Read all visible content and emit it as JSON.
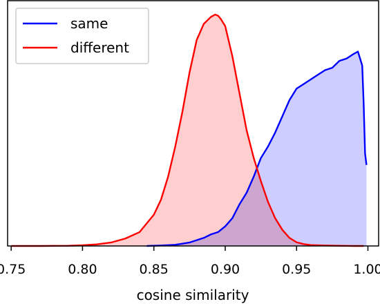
{
  "chart_data": {
    "type": "area",
    "xlabel": "cosine similarity",
    "ylabel": "",
    "title": "",
    "xlim": [
      0.7475,
      1.0075
    ],
    "ylim": [
      0,
      1.06
    ],
    "yticks_visible": false,
    "grid": false,
    "legend": {
      "placement": "upper-left"
    },
    "xticks": [
      {
        "value": 0.75,
        "label": "0.75"
      },
      {
        "value": 0.8,
        "label": "0.80"
      },
      {
        "value": 0.85,
        "label": "0.85"
      },
      {
        "value": 0.9,
        "label": "0.90"
      },
      {
        "value": 0.95,
        "label": "0.95"
      },
      {
        "value": 1.0,
        "label": "1.00"
      }
    ],
    "series": [
      {
        "name": "same",
        "color": "#0000ff",
        "fill": "#c8c8ff",
        "x": [
          0.845,
          0.855,
          0.865,
          0.87,
          0.875,
          0.88,
          0.885,
          0.89,
          0.895,
          0.9,
          0.905,
          0.91,
          0.915,
          0.92,
          0.925,
          0.93,
          0.935,
          0.94,
          0.945,
          0.95,
          0.955,
          0.96,
          0.965,
          0.97,
          0.975,
          0.98,
          0.985,
          0.99,
          0.993,
          0.996,
          0.997,
          0.998,
          0.999
        ],
        "y": [
          0.0,
          0.002,
          0.005,
          0.01,
          0.015,
          0.025,
          0.035,
          0.05,
          0.06,
          0.085,
          0.12,
          0.18,
          0.23,
          0.3,
          0.38,
          0.43,
          0.49,
          0.56,
          0.63,
          0.68,
          0.7,
          0.72,
          0.74,
          0.76,
          0.77,
          0.8,
          0.81,
          0.83,
          0.84,
          0.78,
          0.62,
          0.4,
          0.35
        ]
      },
      {
        "name": "different",
        "color": "#ff0000",
        "fill": "#ffcaca",
        "x": [
          0.75,
          0.77,
          0.79,
          0.8,
          0.81,
          0.82,
          0.83,
          0.84,
          0.85,
          0.855,
          0.86,
          0.865,
          0.87,
          0.875,
          0.88,
          0.885,
          0.89,
          0.893,
          0.895,
          0.897,
          0.9,
          0.905,
          0.91,
          0.915,
          0.92,
          0.925,
          0.93,
          0.935,
          0.94,
          0.945,
          0.95,
          0.955,
          0.96,
          0.97,
          0.98,
          0.99,
          0.997
        ],
        "y": [
          0.0,
          0.0,
          0.001,
          0.003,
          0.007,
          0.015,
          0.032,
          0.06,
          0.135,
          0.2,
          0.3,
          0.43,
          0.58,
          0.75,
          0.89,
          0.96,
          0.99,
          1.0,
          0.995,
          0.98,
          0.95,
          0.82,
          0.66,
          0.5,
          0.38,
          0.28,
          0.19,
          0.12,
          0.07,
          0.035,
          0.016,
          0.008,
          0.004,
          0.002,
          0.001,
          0.0,
          0.0
        ]
      }
    ]
  }
}
